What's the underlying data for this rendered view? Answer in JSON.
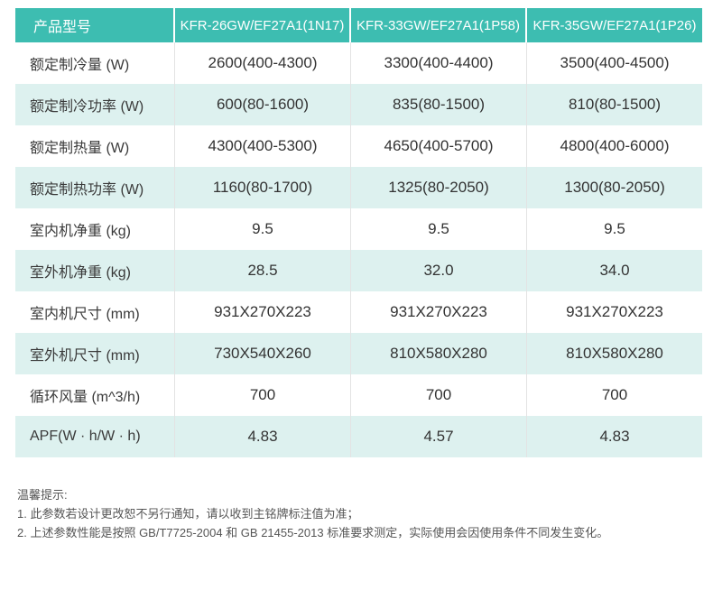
{
  "header": {
    "label": "产品型号",
    "models": [
      "KFR-26GW/EF27A1(1N17)",
      "KFR-33GW/EF27A1(1P58)",
      "KFR-35GW/EF27A1(1P26)"
    ]
  },
  "rows": [
    {
      "label": "额定制冷量 (W)",
      "values": [
        "2600(400-4300)",
        "3300(400-4400)",
        "3500(400-4500)"
      ]
    },
    {
      "label": "额定制冷功率 (W)",
      "values": [
        "600(80-1600)",
        "835(80-1500)",
        "810(80-1500)"
      ]
    },
    {
      "label": "额定制热量 (W)",
      "values": [
        "4300(400-5300)",
        "4650(400-5700)",
        "4800(400-6000)"
      ]
    },
    {
      "label": "额定制热功率 (W)",
      "values": [
        "1160(80-1700)",
        "1325(80-2050)",
        "1300(80-2050)"
      ]
    },
    {
      "label": "室内机净重 (kg)",
      "values": [
        "9.5",
        "9.5",
        "9.5"
      ]
    },
    {
      "label": "室外机净重 (kg)",
      "values": [
        "28.5",
        "32.0",
        "34.0"
      ]
    },
    {
      "label": "室内机尺寸 (mm)",
      "values": [
        "931X270X223",
        "931X270X223",
        "931X270X223"
      ]
    },
    {
      "label": "室外机尺寸 (mm)",
      "values": [
        "730X540X260",
        "810X580X280",
        "810X580X280"
      ]
    },
    {
      "label": "循环风量 (m^3/h)",
      "values": [
        "700",
        "700",
        "700"
      ]
    },
    {
      "label": "APF(W · h/W · h)",
      "values": [
        "4.83",
        "4.57",
        "4.83"
      ]
    }
  ],
  "notes": {
    "title": "温馨提示:",
    "items": [
      "1. 此参数若设计更改恕不另行通知，请以收到主铭牌标注值为准；",
      "2. 上述参数性能是按照 GB/T7725-2004 和 GB 21455-2013 标准要求测定，实际使用会因使用条件不同发生变化。"
    ]
  },
  "colors": {
    "header_bg": "#3dbdb1",
    "stripe_bg": "#ddf1ef",
    "text": "#333333"
  }
}
